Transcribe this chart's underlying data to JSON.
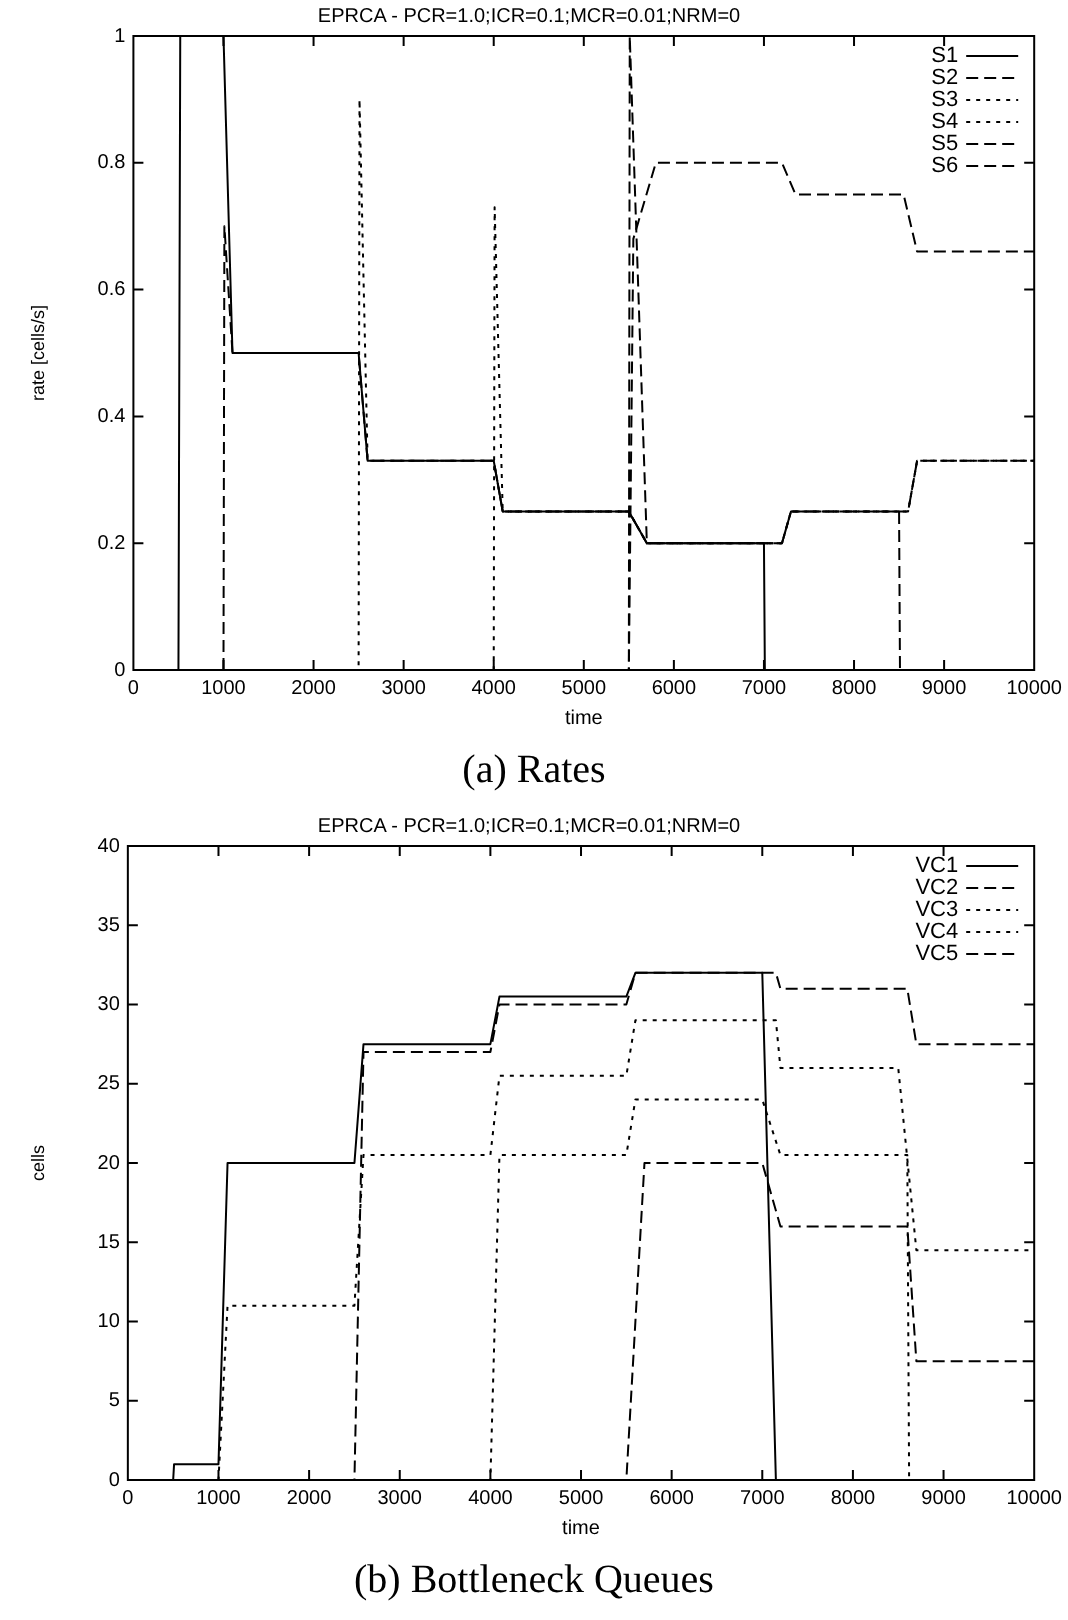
{
  "chart_data": [
    {
      "type": "line",
      "title": "EPRCA - PCR=1.0;ICR=0.1;MCR=0.01;NRM=0",
      "xlabel": "time",
      "ylabel": "rate [cells/s]",
      "annotations": [
        "(a) Rates"
      ],
      "legend": "top right",
      "xlim": [
        0,
        10000
      ],
      "ylim": [
        0,
        1
      ],
      "xticks": [
        0,
        1000,
        2000,
        3000,
        4000,
        5000,
        6000,
        7000,
        8000,
        9000,
        10000
      ],
      "yticks": [
        0,
        0.2,
        0.4,
        0.6,
        0.8,
        1
      ],
      "series": [
        {
          "name": "S1",
          "color": "#000000",
          "line_style": "solid",
          "x": [
            0,
            500,
            520,
            1000,
            1100,
            2500,
            2600,
            4000,
            4100,
            5500,
            5700,
            7000,
            7010,
            10000
          ],
          "values": [
            0,
            0,
            1,
            1,
            0.5,
            0.5,
            0.33,
            0.33,
            0.25,
            0.25,
            0.2,
            0.2,
            0,
            0
          ]
        },
        {
          "name": "S2",
          "color": "#000000",
          "line_style": "dashed",
          "x": [
            0,
            1000,
            1010,
            1100,
            2500,
            2600,
            4000,
            4100,
            5500,
            5700,
            7200,
            7300,
            8500,
            8510,
            10000
          ],
          "values": [
            0,
            0,
            0.7,
            0.5,
            0.5,
            0.33,
            0.33,
            0.25,
            0.25,
            0.2,
            0.2,
            0.25,
            0.25,
            0,
            0
          ]
        },
        {
          "name": "S3",
          "color": "#000000",
          "line_style": "dotted",
          "x": [
            0,
            2500,
            2510,
            2600,
            4000,
            4100,
            5500,
            5700,
            7200,
            7300,
            8600,
            8700,
            10000
          ],
          "values": [
            0,
            0,
            0.9,
            0.33,
            0.33,
            0.25,
            0.25,
            0.2,
            0.2,
            0.25,
            0.25,
            0.33,
            0.33
          ]
        },
        {
          "name": "S4",
          "color": "#000000",
          "line_style": "dotted",
          "x": [
            0,
            4000,
            4010,
            4100,
            5500,
            5700,
            7200,
            7300,
            8600,
            8700,
            10000
          ],
          "values": [
            0,
            0,
            0.73,
            0.25,
            0.25,
            0.2,
            0.2,
            0.25,
            0.25,
            0.33,
            0.33
          ]
        },
        {
          "name": "S5",
          "color": "#000000",
          "line_style": "dashed",
          "x": [
            0,
            5500,
            5510,
            5700,
            7200,
            7300,
            8600,
            8700,
            10000
          ],
          "values": [
            0,
            0,
            1,
            0.2,
            0.2,
            0.25,
            0.25,
            0.33,
            0.33
          ]
        },
        {
          "name": "S6",
          "color": "#000000",
          "line_style": "dashed",
          "x": [
            0,
            5500,
            5550,
            5800,
            7200,
            7350,
            8550,
            8700,
            10000
          ],
          "values": [
            0,
            0,
            0.68,
            0.8,
            0.8,
            0.75,
            0.75,
            0.66,
            0.66
          ]
        }
      ]
    },
    {
      "type": "line",
      "title": "EPRCA - PCR=1.0;ICR=0.1;MCR=0.01;NRM=0",
      "xlabel": "time",
      "ylabel": "cells",
      "annotations": [
        "(b) Bottleneck Queues"
      ],
      "legend": "top right",
      "xlim": [
        0,
        10000
      ],
      "ylim": [
        0,
        40
      ],
      "xticks": [
        0,
        1000,
        2000,
        3000,
        4000,
        5000,
        6000,
        7000,
        8000,
        9000,
        10000
      ],
      "yticks": [
        0,
        5,
        10,
        15,
        20,
        25,
        30,
        35,
        40
      ],
      "series": [
        {
          "name": "VC1",
          "color": "#000000",
          "line_style": "solid",
          "x": [
            0,
            500,
            510,
            1000,
            1100,
            2500,
            2600,
            4000,
            4100,
            5500,
            5600,
            7000,
            7150,
            10000
          ],
          "values": [
            0,
            0,
            1,
            1,
            20,
            20,
            27.5,
            27.5,
            30.5,
            30.5,
            32,
            32,
            0,
            0
          ]
        },
        {
          "name": "VC2",
          "color": "#000000",
          "line_style": "dashed",
          "x": [
            0,
            2500,
            2600,
            4000,
            4100,
            5500,
            5600,
            7150,
            7200,
            8600,
            8700,
            10000
          ],
          "values": [
            0,
            0,
            27,
            27,
            30,
            30,
            32,
            32,
            31,
            31,
            27.5,
            27.5
          ]
        },
        {
          "name": "VC3",
          "color": "#000000",
          "line_style": "dotted",
          "x": [
            0,
            1000,
            1100,
            2500,
            2600,
            4000,
            4100,
            5500,
            5600,
            7150,
            7200,
            8500,
            8700,
            10000
          ],
          "values": [
            0,
            0,
            11,
            11,
            20.5,
            20.5,
            25.5,
            25.5,
            29,
            29,
            26,
            26,
            14.5,
            14.5
          ]
        },
        {
          "name": "VC4",
          "color": "#000000",
          "line_style": "dotted",
          "x": [
            0,
            4000,
            4100,
            5500,
            5600,
            7000,
            7200,
            8600,
            8620,
            10000
          ],
          "values": [
            0,
            0,
            20.5,
            20.5,
            24,
            24,
            20.5,
            20.5,
            0,
            0
          ]
        },
        {
          "name": "VC5",
          "color": "#000000",
          "line_style": "dashed",
          "x": [
            0,
            5500,
            5600,
            5700,
            7000,
            7200,
            8600,
            8700,
            10000
          ],
          "values": [
            0,
            0,
            10,
            20,
            20,
            16,
            16,
            7.5,
            7.5
          ]
        }
      ]
    }
  ]
}
